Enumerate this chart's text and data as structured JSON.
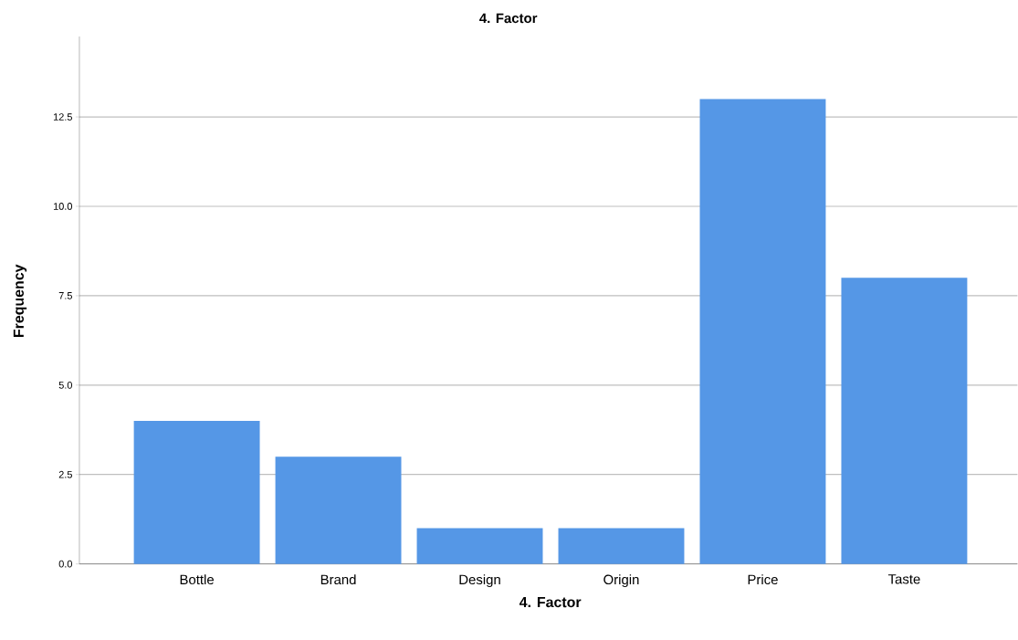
{
  "chart_data": {
    "type": "bar",
    "title": "4. Factor",
    "xlabel": "4. Factor",
    "ylabel": "Frequency",
    "categories": [
      "Bottle",
      "Brand",
      "Design",
      "Origin",
      "Price",
      "Taste"
    ],
    "values": [
      4,
      3,
      1,
      1,
      13,
      8
    ],
    "color": "#5597e6",
    "ylim": [
      0,
      14.75
    ],
    "yticks": [
      {
        "value": 0,
        "label": "0.0"
      },
      {
        "value": 2.5,
        "label": "2.5"
      },
      {
        "value": 5,
        "label": "5.0"
      },
      {
        "value": 7.5,
        "label": "7.5"
      },
      {
        "value": 10,
        "label": "10.0"
      },
      {
        "value": 12.5,
        "label": "12.5"
      }
    ],
    "grid": "y"
  }
}
